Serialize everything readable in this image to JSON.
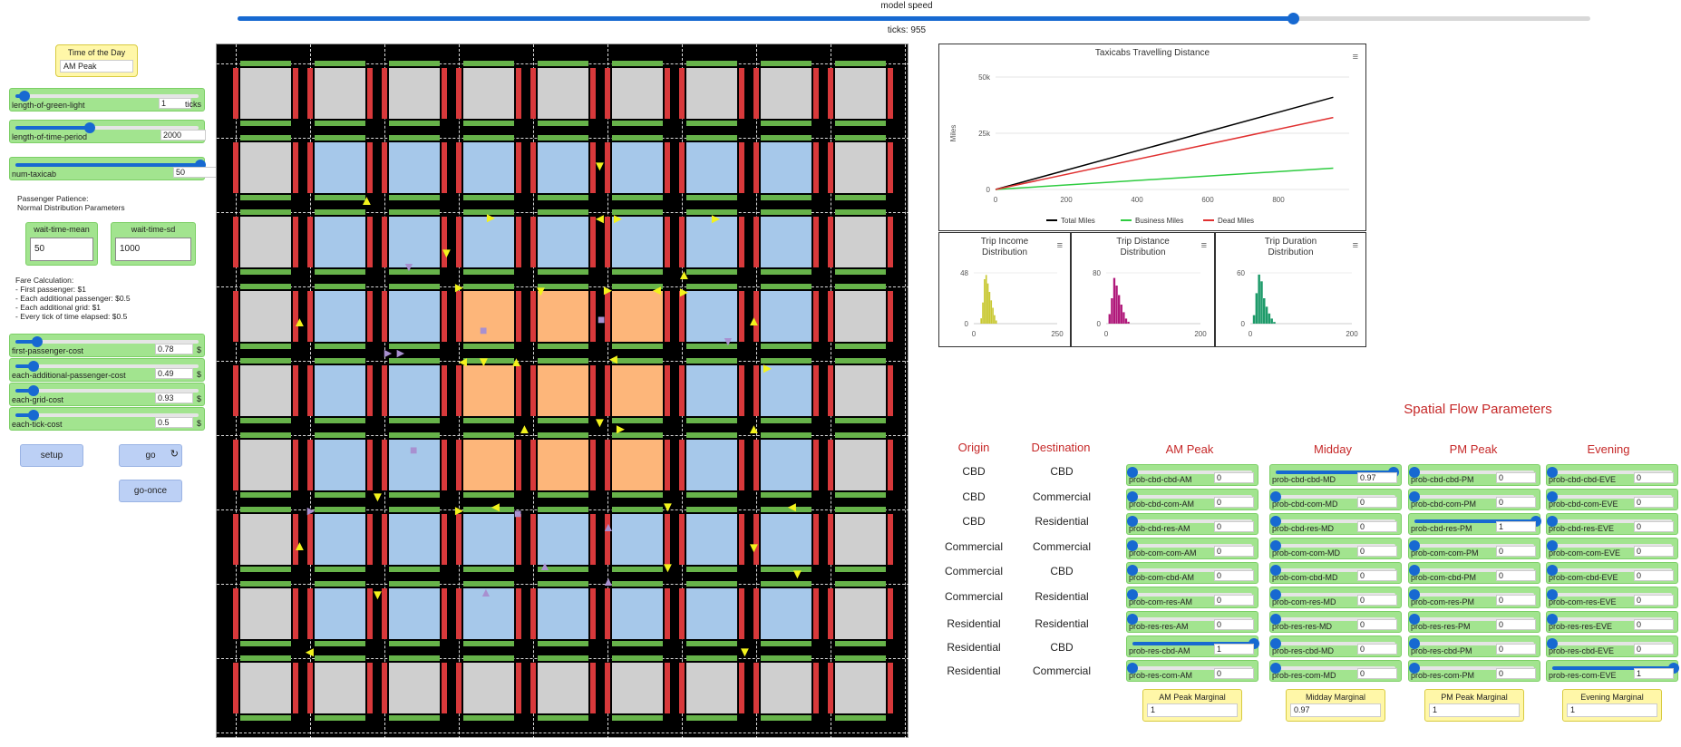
{
  "header": {
    "speed_label": "model speed",
    "ticks_label": "ticks: 955",
    "speed_fraction": 0.78
  },
  "time_of_day": {
    "label": "Time of the Day",
    "value": "AM Peak"
  },
  "sliders": [
    {
      "name": "length-of-green-light",
      "value": "1",
      "unit": "ticks",
      "fraction": 0.05
    },
    {
      "name": "length-of-time-period",
      "value": "2000",
      "unit": "",
      "fraction": 0.4
    },
    {
      "name": "num-taxicab",
      "value": "50",
      "unit": "",
      "fraction": 1.0
    }
  ],
  "patience": {
    "text": "Passenger Patience:\nNormal Distribution Parameters"
  },
  "wait_inputs": [
    {
      "label": "wait-time-mean",
      "value": "50"
    },
    {
      "label": "wait-time-sd",
      "value": "1000"
    }
  ],
  "fare": {
    "text": "Fare Calculation:\n- First passenger: $1\n- Each additional passenger: $0.5\n- Each additional grid: $1\n- Every tick of time elapsed: $0.5"
  },
  "cost_sliders": [
    {
      "name": "first-passenger-cost",
      "value": "0.78",
      "unit": "$",
      "fraction": 0.12
    },
    {
      "name": "each-additional-passenger-cost",
      "value": "0.49",
      "unit": "$",
      "fraction": 0.1
    },
    {
      "name": "each-grid-cost",
      "value": "0.93",
      "unit": "$",
      "fraction": 0.1
    },
    {
      "name": "each-tick-cost",
      "value": "0.5",
      "unit": "$",
      "fraction": 0.1
    }
  ],
  "buttons": {
    "setup": "setup",
    "go": "go",
    "go_once": "go-once",
    "forever_icon": "↻"
  },
  "charts": {
    "distance": {
      "title": "Taxicabs Travelling Distance",
      "ylabel": "Miles",
      "yticks": [
        "50k",
        "25k",
        "0"
      ],
      "xticks": [
        "0",
        "200",
        "400",
        "600",
        "800"
      ],
      "legend": [
        "Total Miles",
        "Business Miles",
        "Dead Miles"
      ],
      "colors": [
        "#000000",
        "#2ecc40",
        "#e03030"
      ],
      "menu_icon": "≡"
    },
    "income": {
      "title": "Trip Income\nDistribution",
      "yticks": [
        "48",
        "0"
      ],
      "xticks": [
        "0",
        "250"
      ],
      "color": "#c8c832"
    },
    "tripdist": {
      "title": "Trip Distance\nDistribution",
      "yticks": [
        "80",
        "0"
      ],
      "xticks": [
        "0",
        "200"
      ],
      "color": "#b0187a"
    },
    "duration": {
      "title": "Trip Duration\nDistribution",
      "yticks": [
        "60",
        "0"
      ],
      "xticks": [
        "0",
        "200"
      ],
      "color": "#1e9b6a"
    }
  },
  "chart_data": [
    {
      "type": "line",
      "title": "Taxicabs Travelling Distance",
      "xlabel": "",
      "ylabel": "Miles",
      "xlim": [
        0,
        1000
      ],
      "ylim": [
        0,
        50000
      ],
      "series": [
        {
          "name": "Total Miles",
          "x": [
            0,
            955
          ],
          "y": [
            0,
            41000
          ]
        },
        {
          "name": "Business Miles",
          "x": [
            0,
            955
          ],
          "y": [
            0,
            9500
          ]
        },
        {
          "name": "Dead Miles",
          "x": [
            0,
            955
          ],
          "y": [
            0,
            32000
          ]
        }
      ]
    },
    {
      "type": "bar",
      "title": "Trip Income Distribution",
      "xlim": [
        0,
        250
      ],
      "ylim": [
        0,
        48
      ],
      "x": [
        20,
        25,
        30,
        35,
        40,
        45,
        50,
        55,
        60,
        65
      ],
      "values": [
        5,
        20,
        42,
        46,
        38,
        30,
        22,
        15,
        8,
        3
      ]
    },
    {
      "type": "bar",
      "title": "Trip Distance Distribution",
      "xlim": [
        0,
        200
      ],
      "ylim": [
        0,
        80
      ],
      "x": [
        5,
        10,
        15,
        20,
        25,
        30,
        35,
        40,
        45
      ],
      "values": [
        15,
        40,
        72,
        60,
        45,
        30,
        18,
        8,
        3
      ]
    },
    {
      "type": "bar",
      "title": "Trip Duration Distribution",
      "xlim": [
        0,
        200
      ],
      "ylim": [
        0,
        60
      ],
      "x": [
        5,
        10,
        15,
        20,
        25,
        30,
        35,
        40,
        45
      ],
      "values": [
        10,
        36,
        58,
        50,
        30,
        20,
        12,
        6,
        2
      ]
    }
  ],
  "spatial": {
    "title": "Spatial Flow Parameters",
    "origin_head": "Origin",
    "dest_head": "Destination",
    "rows": [
      [
        "CBD",
        "CBD"
      ],
      [
        "CBD",
        "Commercial"
      ],
      [
        "CBD",
        "Residential"
      ],
      [
        "Commercial",
        "Commercial"
      ],
      [
        "Commercial",
        "CBD"
      ],
      [
        "Commercial",
        "Residential"
      ],
      [
        "Residential",
        "Residential"
      ],
      [
        "Residential",
        "CBD"
      ],
      [
        "Residential",
        "Commercial"
      ]
    ],
    "columns": [
      {
        "head": "AM Peak",
        "monitor_label": "AM Peak Marginal",
        "monitor_value": "1",
        "items": [
          {
            "name": "prob-cbd-cbd-AM",
            "value": "0",
            "fraction": 0
          },
          {
            "name": "prob-cbd-com-AM",
            "value": "0",
            "fraction": 0
          },
          {
            "name": "prob-cbd-res-AM",
            "value": "0",
            "fraction": 0
          },
          {
            "name": "prob-com-com-AM",
            "value": "0",
            "fraction": 0
          },
          {
            "name": "prob-com-cbd-AM",
            "value": "0",
            "fraction": 0
          },
          {
            "name": "prob-com-res-AM",
            "value": "0",
            "fraction": 0
          },
          {
            "name": "prob-res-res-AM",
            "value": "0",
            "fraction": 0
          },
          {
            "name": "prob-res-cbd-AM",
            "value": "1",
            "fraction": 1
          },
          {
            "name": "prob-res-com-AM",
            "value": "0",
            "fraction": 0
          }
        ]
      },
      {
        "head": "Midday",
        "monitor_label": "Midday Marginal",
        "monitor_value": "0.97",
        "items": [
          {
            "name": "prob-cbd-cbd-MD",
            "value": "0.97",
            "fraction": 0.97
          },
          {
            "name": "prob-cbd-com-MD",
            "value": "0",
            "fraction": 0
          },
          {
            "name": "prob-cbd-res-MD",
            "value": "0",
            "fraction": 0
          },
          {
            "name": "prob-com-com-MD",
            "value": "0",
            "fraction": 0
          },
          {
            "name": "prob-com-cbd-MD",
            "value": "0",
            "fraction": 0
          },
          {
            "name": "prob-com-res-MD",
            "value": "0",
            "fraction": 0
          },
          {
            "name": "prob-res-res-MD",
            "value": "0",
            "fraction": 0
          },
          {
            "name": "prob-res-cbd-MD",
            "value": "0",
            "fraction": 0
          },
          {
            "name": "prob-res-com-MD",
            "value": "0",
            "fraction": 0
          }
        ]
      },
      {
        "head": "PM Peak",
        "monitor_label": "PM Peak Marginal",
        "monitor_value": "1",
        "items": [
          {
            "name": "prob-cbd-cbd-PM",
            "value": "0",
            "fraction": 0
          },
          {
            "name": "prob-cbd-com-PM",
            "value": "0",
            "fraction": 0
          },
          {
            "name": "prob-cbd-res-PM",
            "value": "1",
            "fraction": 1
          },
          {
            "name": "prob-com-com-PM",
            "value": "0",
            "fraction": 0
          },
          {
            "name": "prob-com-cbd-PM",
            "value": "0",
            "fraction": 0
          },
          {
            "name": "prob-com-res-PM",
            "value": "0",
            "fraction": 0
          },
          {
            "name": "prob-res-res-PM",
            "value": "0",
            "fraction": 0
          },
          {
            "name": "prob-res-cbd-PM",
            "value": "0",
            "fraction": 0
          },
          {
            "name": "prob-res-com-PM",
            "value": "0",
            "fraction": 0
          }
        ]
      },
      {
        "head": "Evening",
        "monitor_label": "Evening Marginal",
        "monitor_value": "1",
        "items": [
          {
            "name": "prob-cbd-cbd-EVE",
            "value": "0",
            "fraction": 0
          },
          {
            "name": "prob-cbd-com-EVE",
            "value": "0",
            "fraction": 0
          },
          {
            "name": "prob-cbd-res-EVE",
            "value": "0",
            "fraction": 0
          },
          {
            "name": "prob-com-com-EVE",
            "value": "0",
            "fraction": 0
          },
          {
            "name": "prob-com-cbd-EVE",
            "value": "0",
            "fraction": 0
          },
          {
            "name": "prob-com-res-EVE",
            "value": "0",
            "fraction": 0
          },
          {
            "name": "prob-res-res-EVE",
            "value": "0",
            "fraction": 0
          },
          {
            "name": "prob-res-cbd-EVE",
            "value": "0",
            "fraction": 0
          },
          {
            "name": "prob-res-com-EVE",
            "value": "1",
            "fraction": 1
          }
        ]
      }
    ]
  },
  "world": {
    "zone_colors": {
      "cbd": "#fdb67a",
      "commercial": "#a6c8ea",
      "residential": "#cfcfcf"
    },
    "zones": [
      "RRRRRRRRR",
      "RCCCCCCCR",
      "RCCCCCCCR",
      "RCCBBBCCR",
      "RCCBBBCCR",
      "RCCBBBCCR",
      "RCCCCCCCR",
      "RCCCCCCCR",
      "RRRRRRRRR"
    ],
    "taxi_color": "#f2f21c",
    "idle_taxi_color": "#a890d0"
  }
}
